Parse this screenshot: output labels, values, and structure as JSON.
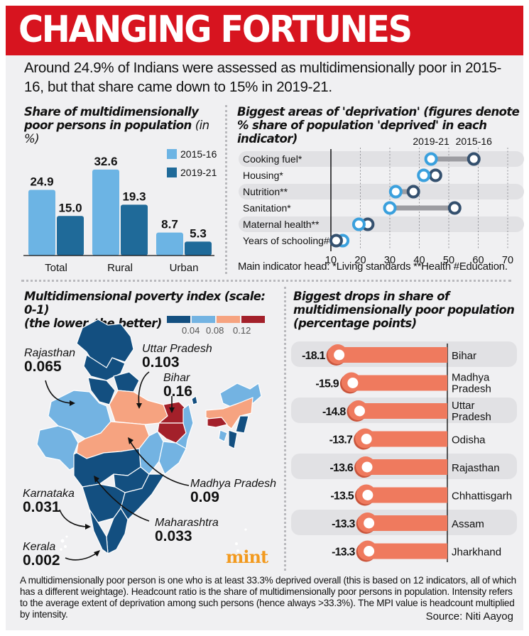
{
  "header": {
    "title": "CHANGING FORTUNES",
    "intro": "Around 24.9% of Indians were assessed as multidimensionally poor in 2015-16, but that share came down to 15% in 2019-21."
  },
  "colors": {
    "brand_red": "#d7141f",
    "series_2015_16": "#6cb4e4",
    "series_2019_21": "#1f6a99",
    "dumbbell_2019_21": "#3aa0dd",
    "dumbbell_2015_16": "#34506e",
    "drop_bar": "#ef7a5e",
    "map_scale": [
      "#134f80",
      "#73b3e2",
      "#f6a380",
      "#a3202a"
    ],
    "mint_logo": "#f29a1f"
  },
  "chart_data": [
    {
      "type": "bar",
      "title": "Share of multidimensionally poor persons in population",
      "title_unit": "(in %)",
      "categories": [
        "Total",
        "Rural",
        "Urban"
      ],
      "series": [
        {
          "name": "2015-16",
          "values": [
            24.9,
            32.6,
            8.7
          ],
          "labels": [
            "24.9",
            "32.6",
            "8.7"
          ]
        },
        {
          "name": "2019-21",
          "values": [
            15.0,
            19.3,
            5.3
          ],
          "labels": [
            "15.0",
            "19.3",
            "5.3"
          ]
        }
      ],
      "ylim": [
        0,
        35
      ],
      "legend": "top-right",
      "grid": false
    },
    {
      "type": "scatter",
      "subtype": "dumbbell",
      "title": "Biggest areas of 'deprivation' (figures denote % share of population 'deprived' in each indicator)",
      "categories": [
        "Cooking fuel*",
        "Housing*",
        "Nutrition**",
        "Sanitation*",
        "Maternal health**",
        "Years of schooling#"
      ],
      "series": [
        {
          "name": "2019-21",
          "values": [
            44,
            41.5,
            32,
            30,
            19.5,
            14
          ]
        },
        {
          "name": "2015-16",
          "values": [
            58.5,
            45.5,
            38,
            52,
            22.5,
            11.8
          ]
        }
      ],
      "xlim": [
        10,
        70
      ],
      "xticks": [
        10,
        20,
        30,
        40,
        50,
        60,
        70
      ],
      "grid": true,
      "legend": "top",
      "note": "Main indicator head: *Living standards **Health #Education."
    },
    {
      "type": "bar",
      "subtype": "horizontal",
      "title": "Biggest drops in share of multidimensionally poor population (percentage points)",
      "categories": [
        "Bihar",
        "Madhya Pradesh",
        "Uttar Pradesh",
        "Odisha",
        "Rajasthan",
        "Chhattisgarh",
        "Assam",
        "Jharkhand"
      ],
      "category_lines": [
        [
          "Bihar"
        ],
        [
          "Madhya",
          "Pradesh"
        ],
        [
          "Uttar",
          "Pradesh"
        ],
        [
          "Odisha"
        ],
        [
          "Rajasthan"
        ],
        [
          "Chhattisgarh"
        ],
        [
          "Assam"
        ],
        [
          "Jharkhand"
        ]
      ],
      "values": [
        -18.1,
        -15.9,
        -14.8,
        -13.7,
        -13.6,
        -13.5,
        -13.3,
        -13.3
      ],
      "labels": [
        "-18.1",
        "-15.9",
        "-14.8",
        "-13.7",
        "-13.6",
        "-13.5",
        "-13.3",
        "-13.3"
      ],
      "xlim": [
        -20,
        0
      ]
    }
  ],
  "bar_panel": {
    "title_main": "Share of multidimensionally poor persons in population",
    "title_unit": "(in %)",
    "legend": [
      "2015-16",
      "2019-21"
    ]
  },
  "dumbbell_panel": {
    "title": "Biggest areas of 'deprivation' (figures denote % share of population 'deprived' in each indicator)",
    "legend_2019": "2019-21",
    "legend_2015": "2015-16",
    "note": "Main indicator head: *Living standards **Health #Education."
  },
  "map_panel": {
    "title_line1": "Multidimensional poverty index (scale: 0-1)",
    "title_line2": "(the lower, the better)",
    "scale_ticks": [
      "0.04",
      "0.08",
      "0.12"
    ],
    "callouts": [
      {
        "state": "Rajasthan",
        "value": "0.065"
      },
      {
        "state": "Uttar Pradesh",
        "value": "0.103"
      },
      {
        "state": "Bihar",
        "value": "0.16"
      },
      {
        "state": "Madhya Pradesh",
        "value": "0.09"
      },
      {
        "state": "Karnataka",
        "value": "0.031"
      },
      {
        "state": "Maharashtra",
        "value": "0.033"
      },
      {
        "state": "Kerala",
        "value": "0.002"
      }
    ],
    "logo": "mint"
  },
  "drops_panel": {
    "title_line1": "Biggest drops in share of",
    "title_line2": "multidimensionally poor population",
    "title_line3": "(percentage points)"
  },
  "footer": {
    "footnote": "A multidimensionally poor person is one who is at least 33.3% deprived overall (this is based on 12 indicators, all of which has a different weightage). Headcount ratio is the share of multidimensionally poor persons in population. Intensity refers to the average extent of deprivation among such persons (hence always >33.3%). The MPI value is headcount multiplied by intensity.",
    "source": "Source: Niti Aayog"
  }
}
